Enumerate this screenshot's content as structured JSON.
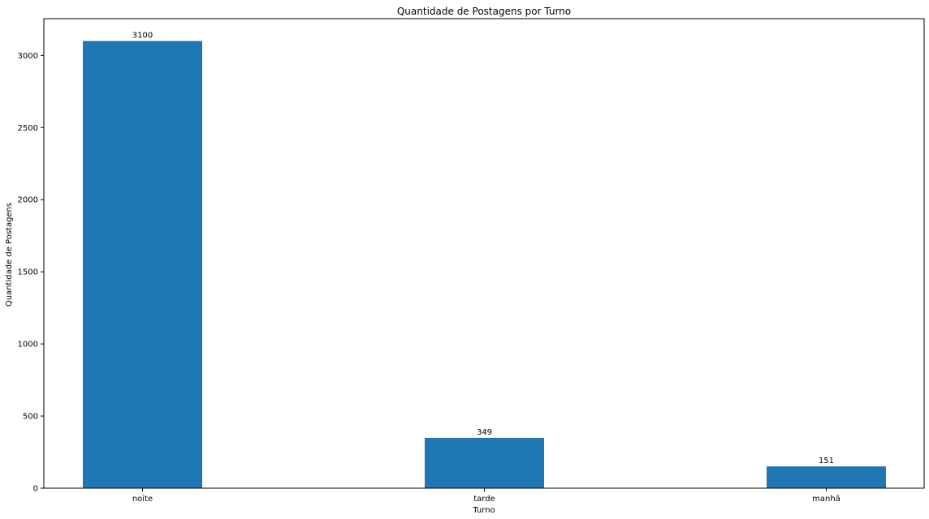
{
  "chart_data": {
    "type": "bar",
    "title": "Quantidade de Postagens por Turno",
    "xlabel": "Turno",
    "ylabel": "Quantidade de Postagens",
    "categories": [
      "noite",
      "tarde",
      "manhã"
    ],
    "values": [
      3100,
      349,
      151
    ],
    "data_labels": [
      "3100",
      "349",
      "151"
    ],
    "ylim": [
      0,
      3255
    ],
    "yticks": [
      0,
      500,
      1000,
      1500,
      2000,
      2500,
      3000
    ],
    "ytick_labels": [
      "0",
      "500",
      "1000",
      "1500",
      "2000",
      "2500",
      "3000"
    ],
    "bar_color": "#1f77b4",
    "grid": false,
    "legend": "none"
  }
}
